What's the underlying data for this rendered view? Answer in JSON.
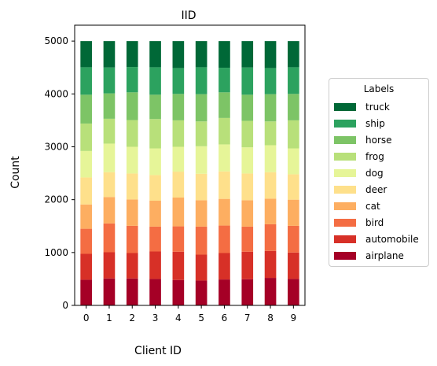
{
  "chart_data": {
    "type": "bar",
    "stacked": true,
    "title": "IID",
    "xlabel": "Client ID",
    "ylabel": "Count",
    "categories": [
      "0",
      "1",
      "2",
      "3",
      "4",
      "5",
      "6",
      "7",
      "8",
      "9"
    ],
    "yticks": [
      "0",
      "1000",
      "2000",
      "3000",
      "4000",
      "5000"
    ],
    "ylim": [
      0,
      5300
    ],
    "grid": false,
    "legend": {
      "title": "Labels",
      "placement": "right-outside",
      "order_top_to_bottom": [
        "truck",
        "ship",
        "horse",
        "frog",
        "dog",
        "deer",
        "cat",
        "bird",
        "automobile",
        "airplane"
      ]
    },
    "series": [
      {
        "name": "airplane",
        "color": "#a50026",
        "values": [
          485,
          510,
          510,
          500,
          480,
          470,
          490,
          495,
          520,
          500
        ]
      },
      {
        "name": "automobile",
        "color": "#d73027",
        "values": [
          490,
          495,
          480,
          520,
          535,
          490,
          500,
          520,
          510,
          500
        ]
      },
      {
        "name": "bird",
        "color": "#f46d43",
        "values": [
          475,
          545,
          515,
          470,
          480,
          530,
          520,
          475,
          505,
          505
        ]
      },
      {
        "name": "cat",
        "color": "#fdae61",
        "values": [
          460,
          500,
          500,
          490,
          545,
          500,
          505,
          500,
          485,
          495
        ]
      },
      {
        "name": "deer",
        "color": "#fee08b",
        "values": [
          510,
          470,
          490,
          485,
          490,
          500,
          520,
          505,
          500,
          480
        ]
      },
      {
        "name": "dog",
        "color": "#e6f598",
        "values": [
          500,
          540,
          505,
          505,
          470,
          520,
          510,
          495,
          510,
          490
        ]
      },
      {
        "name": "frog",
        "color": "#b8e07a",
        "values": [
          520,
          470,
          505,
          555,
          500,
          470,
          500,
          500,
          450,
          530
        ]
      },
      {
        "name": "horse",
        "color": "#7dc466",
        "values": [
          545,
          480,
          525,
          460,
          500,
          515,
          485,
          495,
          515,
          500
        ]
      },
      {
        "name": "ship",
        "color": "#2ca25f",
        "values": [
          520,
          490,
          480,
          520,
          490,
          510,
          465,
          515,
          495,
          505
        ]
      },
      {
        "name": "truck",
        "color": "#006837",
        "values": [
          495,
          500,
          490,
          495,
          510,
          495,
          505,
          500,
          510,
          495
        ]
      }
    ]
  }
}
